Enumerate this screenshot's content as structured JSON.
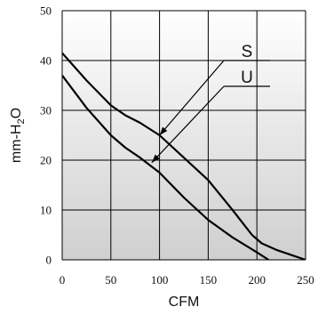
{
  "chart_data": {
    "type": "line",
    "xlabel": "CFM",
    "ylabel_parts": {
      "main": "mm-H",
      "sub": "2",
      "tail": "O"
    },
    "xlim": [
      0,
      250
    ],
    "ylim": [
      0,
      50
    ],
    "x_ticks": [
      0,
      50,
      100,
      150,
      200,
      250
    ],
    "y_ticks": [
      0,
      10,
      20,
      30,
      40,
      50
    ],
    "grid": true,
    "background": "vertical gradient, white at top to gray at bottom",
    "series": [
      {
        "name": "S",
        "x": [
          0,
          25,
          50,
          65,
          80,
          100,
          125,
          150,
          175,
          195,
          205,
          220,
          235,
          250
        ],
        "y": [
          41.5,
          36,
          31,
          29,
          27.5,
          25,
          20.5,
          16,
          10,
          5,
          3.3,
          2,
          1,
          0
        ]
      },
      {
        "name": "U",
        "x": [
          0,
          25,
          50,
          65,
          80,
          100,
          125,
          150,
          175,
          200,
          212
        ],
        "y": [
          37,
          30.5,
          25,
          22.5,
          20.5,
          17.5,
          12.5,
          8,
          4.5,
          1.5,
          0
        ]
      }
    ],
    "annotations": [
      {
        "label": "S",
        "points_to_series": "S"
      },
      {
        "label": "U",
        "points_to_series": "U"
      }
    ]
  },
  "colors": {
    "line": "#000000",
    "bg_top": "#ffffff",
    "bg_bottom": "#cfcfcf"
  }
}
